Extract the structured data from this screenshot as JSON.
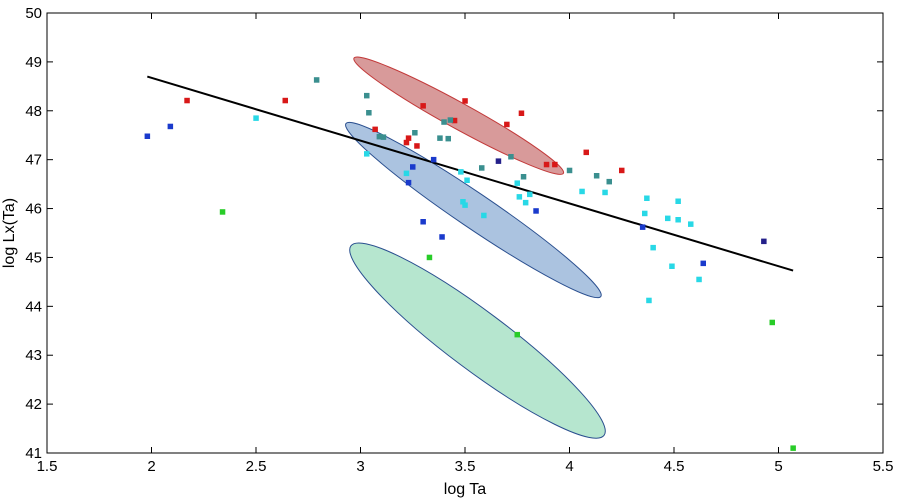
{
  "chart_data": {
    "type": "scatter",
    "title": "",
    "xlabel": "log Ta",
    "ylabel": "log Lx(Ta)",
    "xlim": [
      1.5,
      5.5
    ],
    "ylim": [
      41,
      50
    ],
    "x_ticks": [
      1.5,
      2,
      2.5,
      3,
      3.5,
      4,
      4.5,
      5,
      5.5
    ],
    "x_tick_labels": [
      "1.5",
      "2",
      "2.5",
      "3",
      "3.5",
      "4",
      "4.5",
      "5",
      "5.5"
    ],
    "y_ticks": [
      41,
      42,
      43,
      44,
      45,
      46,
      47,
      48,
      49,
      50
    ],
    "y_tick_labels": [
      "41",
      "42",
      "43",
      "44",
      "45",
      "46",
      "47",
      "48",
      "49",
      "50"
    ],
    "grid": false,
    "fit_line": {
      "color": "#000000",
      "x": [
        1.98,
        5.07
      ],
      "y": [
        48.7,
        44.73
      ]
    },
    "ellipses": [
      {
        "name": "green-region",
        "fill": "#b6e6cf",
        "stroke": "#2a4f8f",
        "cx": 3.56,
        "cy": 43.3,
        "semi_major": 2.03,
        "semi_minor": 0.75,
        "angle_deg": -3.2
      },
      {
        "name": "blue-region",
        "fill": "#abc3e0",
        "stroke": "#2a4f8f",
        "cx": 3.54,
        "cy": 45.97,
        "semi_major": 1.87,
        "semi_minor": 0.43,
        "angle_deg": -2.9
      },
      {
        "name": "red-region",
        "fill": "#d89a9a",
        "stroke": "#c23a3a",
        "cx": 3.47,
        "cy": 47.9,
        "semi_major": 1.28,
        "semi_minor": 0.3,
        "angle_deg": -2.35
      }
    ],
    "series": [
      {
        "name": "red",
        "color": "#d81818",
        "points": [
          [
            2.17,
            48.21
          ],
          [
            2.64,
            48.21
          ],
          [
            3.07,
            47.62
          ],
          [
            3.22,
            47.35
          ],
          [
            3.23,
            47.44
          ],
          [
            3.27,
            47.28
          ],
          [
            3.3,
            48.1
          ],
          [
            3.45,
            47.8
          ],
          [
            3.5,
            48.2
          ],
          [
            3.7,
            47.72
          ],
          [
            3.77,
            47.95
          ],
          [
            3.89,
            46.9
          ],
          [
            3.93,
            46.9
          ],
          [
            4.08,
            47.15
          ],
          [
            4.25,
            46.78
          ]
        ]
      },
      {
        "name": "teal",
        "color": "#3a8f8f",
        "points": [
          [
            2.79,
            48.63
          ],
          [
            3.03,
            48.31
          ],
          [
            3.04,
            47.96
          ],
          [
            3.09,
            47.47
          ],
          [
            3.11,
            47.46
          ],
          [
            3.26,
            47.55
          ],
          [
            3.38,
            47.44
          ],
          [
            3.4,
            47.77
          ],
          [
            3.42,
            47.43
          ],
          [
            3.43,
            47.81
          ],
          [
            3.58,
            46.83
          ],
          [
            3.72,
            47.06
          ],
          [
            3.78,
            46.65
          ],
          [
            4.0,
            46.78
          ],
          [
            4.13,
            46.67
          ],
          [
            4.19,
            46.55
          ]
        ]
      },
      {
        "name": "blue",
        "color": "#1a3acc",
        "points": [
          [
            1.98,
            47.48
          ],
          [
            2.09,
            47.68
          ],
          [
            3.23,
            46.53
          ],
          [
            3.25,
            46.85
          ],
          [
            3.3,
            45.73
          ],
          [
            3.35,
            47.0
          ],
          [
            3.39,
            45.42
          ],
          [
            3.84,
            45.95
          ],
          [
            4.35,
            45.62
          ],
          [
            4.64,
            44.88
          ]
        ]
      },
      {
        "name": "navy",
        "color": "#24208a",
        "points": [
          [
            3.66,
            46.97
          ],
          [
            4.93,
            45.33
          ]
        ]
      },
      {
        "name": "cyan",
        "color": "#28d8e6",
        "points": [
          [
            2.5,
            47.85
          ],
          [
            3.03,
            47.12
          ],
          [
            3.22,
            46.72
          ],
          [
            3.48,
            46.75
          ],
          [
            3.49,
            46.14
          ],
          [
            3.5,
            46.07
          ],
          [
            3.51,
            46.58
          ],
          [
            3.59,
            45.86
          ],
          [
            3.75,
            46.52
          ],
          [
            3.76,
            46.24
          ],
          [
            3.79,
            46.12
          ],
          [
            3.81,
            46.29
          ],
          [
            4.06,
            46.35
          ],
          [
            4.17,
            46.33
          ],
          [
            4.36,
            45.9
          ],
          [
            4.37,
            46.21
          ],
          [
            4.38,
            44.12
          ],
          [
            4.4,
            45.2
          ],
          [
            4.47,
            45.8
          ],
          [
            4.49,
            44.82
          ],
          [
            4.52,
            45.77
          ],
          [
            4.52,
            46.15
          ],
          [
            4.58,
            45.68
          ],
          [
            4.62,
            44.55
          ]
        ]
      },
      {
        "name": "green",
        "color": "#28cc28",
        "points": [
          [
            2.34,
            45.93
          ],
          [
            3.33,
            45.0
          ],
          [
            3.75,
            43.42
          ],
          [
            4.97,
            43.67
          ],
          [
            5.07,
            41.1
          ]
        ]
      }
    ]
  }
}
